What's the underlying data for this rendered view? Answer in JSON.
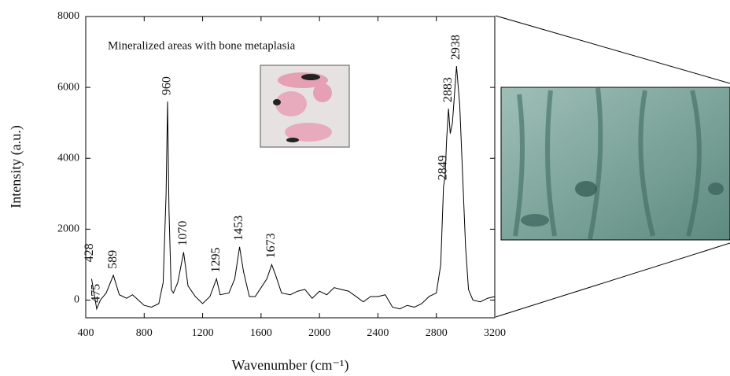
{
  "chart_data": {
    "type": "line",
    "annotation": "Mineralized areas with bone metaplasia",
    "xlabel": "Wavenumber (cm⁻¹)",
    "ylabel": "Intensity (a.u.)",
    "x": [
      440,
      475,
      500,
      540,
      589,
      630,
      680,
      720,
      760,
      800,
      850,
      900,
      930,
      950,
      960,
      970,
      985,
      1000,
      1030,
      1070,
      1100,
      1150,
      1200,
      1250,
      1295,
      1320,
      1380,
      1420,
      1453,
      1480,
      1520,
      1560,
      1600,
      1640,
      1673,
      1700,
      1740,
      1800,
      1850,
      1900,
      1950,
      2000,
      2050,
      2100,
      2150,
      2200,
      2250,
      2300,
      2350,
      2400,
      2450,
      2500,
      2550,
      2600,
      2650,
      2700,
      2750,
      2800,
      2830,
      2849,
      2860,
      2870,
      2883,
      2895,
      2910,
      2938,
      2960,
      2980,
      3000,
      3020,
      3050,
      3100,
      3150,
      3200
    ],
    "values": [
      600,
      -250,
      0,
      200,
      700,
      150,
      50,
      150,
      0,
      -150,
      -200,
      -100,
      500,
      3000,
      5600,
      2500,
      300,
      200,
      500,
      1350,
      400,
      100,
      -100,
      100,
      600,
      150,
      200,
      600,
      1500,
      800,
      100,
      100,
      350,
      600,
      1000,
      700,
      200,
      150,
      250,
      300,
      50,
      250,
      150,
      350,
      300,
      250,
      100,
      -50,
      100,
      100,
      150,
      -200,
      -250,
      -150,
      -200,
      -100,
      100,
      200,
      1000,
      3200,
      3500,
      4500,
      5400,
      4700,
      5000,
      6600,
      5500,
      3500,
      1500,
      300,
      0,
      -50,
      50,
      100
    ],
    "color": "#000000",
    "peak_labels": [
      428,
      475,
      589,
      960,
      1070,
      1295,
      1453,
      1673,
      2849,
      2883,
      2938
    ],
    "xlim": [
      400,
      3200
    ],
    "xticks": [
      400,
      800,
      1200,
      1600,
      2000,
      2400,
      2800,
      3200
    ],
    "ylim": [
      -500,
      8000
    ],
    "yticks": [
      0,
      2000,
      4000,
      6000,
      8000
    ],
    "grid": false
  }
}
